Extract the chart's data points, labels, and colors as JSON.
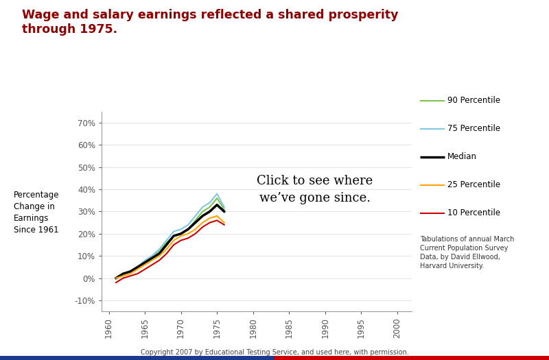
{
  "title_line1": "Wage and salary earnings reflected a shared prosperity",
  "title_line2": "through 1975.",
  "title_color": "#8B0000",
  "ylabel": "Percentage\nChange in\nEarnings\nSince 1961",
  "copyright": "Copyright 2007 by Educational Testing Service, and used here, with permission.",
  "source_note": "Tabulations of annual March\nCurrent Population Survey\nData, by David Ellwood,\nHarvard University.",
  "annotation_line1": "Click to see where",
  "annotation_line2": "we’ve gone since.",
  "years": [
    1961,
    1962,
    1963,
    1964,
    1965,
    1966,
    1967,
    1968,
    1969,
    1970,
    1971,
    1972,
    1973,
    1974,
    1975,
    1976
  ],
  "p90": [
    0,
    2,
    3,
    5,
    7,
    10,
    12,
    16,
    19,
    20,
    22,
    26,
    30,
    32,
    36,
    31
  ],
  "p75": [
    0,
    2,
    3,
    5,
    8,
    10,
    13,
    17,
    21,
    22,
    24,
    28,
    32,
    34,
    38,
    32
  ],
  "median": [
    0,
    2,
    3,
    5,
    7,
    9,
    11,
    15,
    19,
    20,
    22,
    25,
    28,
    30,
    33,
    30
  ],
  "p25": [
    0,
    1,
    2,
    4,
    6,
    8,
    10,
    13,
    17,
    19,
    20,
    22,
    25,
    27,
    28,
    25
  ],
  "p10": [
    -2,
    0,
    1,
    2,
    4,
    6,
    8,
    11,
    15,
    17,
    18,
    20,
    23,
    25,
    26,
    24
  ],
  "color_p90": "#7DC24B",
  "color_p75": "#7EC8E3",
  "color_median": "#000000",
  "color_p25": "#FFA500",
  "color_p10": "#CC0000",
  "xlim": [
    1959,
    2002
  ],
  "ylim": [
    -15,
    75
  ],
  "yticks": [
    -10,
    0,
    10,
    20,
    30,
    40,
    50,
    60,
    70
  ],
  "ytick_labels": [
    "-10%",
    "0%",
    "10%",
    "20%",
    "30%",
    "40%",
    "50%",
    "60%",
    "70%"
  ],
  "xticks": [
    1960,
    1965,
    1970,
    1975,
    1980,
    1985,
    1990,
    1995,
    2000
  ],
  "bg_color": "#FFFFFF",
  "legend_items": [
    {
      "label": "90 Percentile",
      "color": "#7DC24B",
      "lw": 1.5
    },
    {
      "label": "75 Percentile",
      "color": "#7EC8E3",
      "lw": 1.5
    },
    {
      "label": "Median",
      "color": "#000000",
      "lw": 2.5
    },
    {
      "label": "25 Percentile",
      "color": "#FFA500",
      "lw": 1.5
    },
    {
      "label": "10 Percentile",
      "color": "#CC0000",
      "lw": 1.5
    }
  ],
  "bar_blue": "#1A3A8C",
  "bar_red": "#CC0000"
}
